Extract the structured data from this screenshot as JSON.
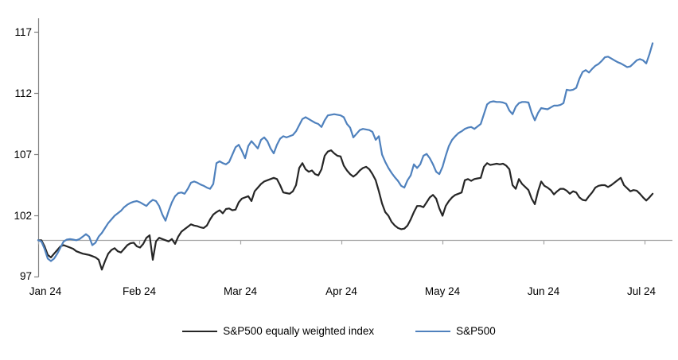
{
  "chart_data": {
    "type": "line",
    "title": "",
    "description": "Indexed performance (start = 100) of S&P500 vs S&P500 equally weighted index, Jan 2024 to Jul 2024",
    "x_axis": {
      "tick_labels": [
        "Jan 24",
        "Feb 24",
        "Mar 24",
        "Apr 24",
        "May 24",
        "Jun 24",
        "Jul 24"
      ],
      "tick_months": [
        0,
        1,
        2,
        3,
        4,
        5,
        6
      ],
      "baseline_value": 100
    },
    "y_axis": {
      "tick_labels": [
        "117",
        "112",
        "107",
        "102",
        "97"
      ],
      "tick_values": [
        117,
        112,
        107,
        102,
        97
      ],
      "range": [
        97,
        118
      ]
    },
    "gridlines": "none; single horizontal baseline at value 100 with month tick marks",
    "legend_position": "bottom-center",
    "sampling": {
      "start_month": 0.0,
      "step_months": 0.0315,
      "count": 194,
      "note": "x in months after 1 Jan 2024"
    },
    "series": [
      {
        "name": "S&P500 equally weighted index",
        "color": "#262626",
        "values": [
          100.0,
          100.0,
          99.5,
          98.8,
          98.6,
          98.9,
          99.2,
          99.5,
          99.6,
          99.5,
          99.4,
          99.3,
          99.1,
          99.0,
          98.9,
          98.85,
          98.8,
          98.7,
          98.6,
          98.4,
          97.6,
          98.3,
          98.9,
          99.2,
          99.35,
          99.1,
          99.0,
          99.3,
          99.6,
          99.75,
          99.8,
          99.5,
          99.4,
          99.7,
          100.2,
          100.4,
          98.4,
          99.9,
          100.2,
          100.1,
          100.0,
          99.9,
          100.1,
          99.7,
          100.3,
          100.7,
          100.9,
          101.1,
          101.3,
          101.2,
          101.15,
          101.05,
          101.0,
          101.2,
          101.7,
          102.1,
          102.3,
          102.45,
          102.2,
          102.55,
          102.6,
          102.45,
          102.5,
          103.1,
          103.4,
          103.5,
          103.6,
          103.2,
          104.0,
          104.3,
          104.6,
          104.8,
          104.9,
          105.0,
          105.1,
          105.0,
          104.5,
          103.9,
          103.85,
          103.8,
          104.0,
          104.5,
          105.9,
          106.3,
          105.8,
          105.6,
          105.7,
          105.4,
          105.3,
          105.8,
          106.9,
          107.25,
          107.35,
          107.1,
          106.9,
          106.85,
          106.1,
          105.7,
          105.4,
          105.2,
          105.4,
          105.7,
          105.9,
          106.0,
          105.8,
          105.4,
          104.9,
          104.0,
          103.0,
          102.3,
          102.0,
          101.5,
          101.2,
          101.0,
          100.9,
          100.95,
          101.2,
          101.7,
          102.3,
          102.8,
          102.8,
          102.7,
          103.1,
          103.5,
          103.7,
          103.4,
          102.6,
          102.0,
          102.8,
          103.2,
          103.5,
          103.7,
          103.8,
          103.9,
          104.9,
          105.0,
          104.85,
          105.0,
          105.05,
          105.1,
          106.0,
          106.3,
          106.15,
          106.2,
          106.25,
          106.2,
          106.25,
          106.1,
          105.8,
          104.5,
          104.2,
          105.0,
          104.6,
          104.35,
          104.1,
          103.4,
          102.95,
          104.0,
          104.8,
          104.45,
          104.3,
          104.1,
          103.75,
          104.0,
          104.2,
          104.2,
          104.05,
          103.8,
          104.0,
          103.9,
          103.5,
          103.3,
          103.25,
          103.6,
          103.9,
          104.3,
          104.45,
          104.5,
          104.5,
          104.35,
          104.5,
          104.7,
          104.9,
          105.1,
          104.5,
          104.25,
          104.0,
          104.1,
          104.05,
          103.8,
          103.5,
          103.25,
          103.5,
          103.8
        ]
      },
      {
        "name": "S&P500",
        "color": "#4f81bd",
        "values": [
          100.0,
          99.9,
          99.3,
          98.5,
          98.3,
          98.5,
          98.9,
          99.4,
          99.9,
          100.05,
          100.1,
          100.05,
          100.0,
          100.1,
          100.3,
          100.5,
          100.3,
          99.6,
          99.8,
          100.3,
          100.6,
          101.0,
          101.4,
          101.7,
          102.0,
          102.2,
          102.4,
          102.7,
          102.9,
          103.05,
          103.15,
          103.2,
          103.1,
          102.95,
          102.8,
          103.1,
          103.3,
          103.2,
          102.8,
          102.1,
          101.6,
          102.4,
          103.1,
          103.6,
          103.85,
          103.9,
          103.8,
          104.2,
          104.7,
          104.8,
          104.7,
          104.55,
          104.45,
          104.3,
          104.2,
          104.6,
          106.3,
          106.45,
          106.3,
          106.2,
          106.4,
          107.0,
          107.6,
          107.8,
          107.3,
          106.7,
          107.7,
          108.1,
          107.8,
          107.5,
          108.2,
          108.4,
          108.1,
          107.5,
          107.1,
          107.8,
          108.3,
          108.5,
          108.4,
          108.5,
          108.6,
          108.9,
          109.4,
          109.9,
          110.05,
          109.9,
          109.75,
          109.6,
          109.5,
          109.25,
          109.8,
          110.2,
          110.25,
          110.3,
          110.25,
          110.2,
          110.05,
          109.5,
          109.2,
          108.4,
          108.7,
          109.0,
          109.1,
          109.05,
          109.0,
          108.85,
          108.2,
          108.5,
          107.0,
          106.4,
          105.9,
          105.5,
          105.15,
          104.85,
          104.45,
          104.3,
          104.9,
          105.3,
          106.2,
          105.9,
          106.2,
          106.9,
          107.05,
          106.7,
          106.2,
          105.6,
          105.4,
          106.0,
          106.9,
          107.7,
          108.2,
          108.5,
          108.75,
          108.9,
          109.1,
          109.2,
          109.25,
          109.1,
          109.3,
          109.5,
          110.3,
          111.1,
          111.3,
          111.35,
          111.3,
          111.3,
          111.25,
          111.15,
          110.6,
          110.3,
          110.9,
          111.2,
          111.3,
          111.3,
          111.25,
          110.4,
          109.8,
          110.4,
          110.8,
          110.75,
          110.7,
          110.85,
          111.0,
          111.0,
          111.05,
          111.2,
          112.3,
          112.25,
          112.3,
          112.45,
          113.2,
          113.75,
          113.9,
          113.7,
          114.0,
          114.25,
          114.4,
          114.65,
          114.95,
          115.0,
          114.85,
          114.7,
          114.55,
          114.45,
          114.3,
          114.15,
          114.2,
          114.45,
          114.7,
          114.8,
          114.7,
          114.45,
          115.2,
          116.1
        ]
      }
    ]
  }
}
